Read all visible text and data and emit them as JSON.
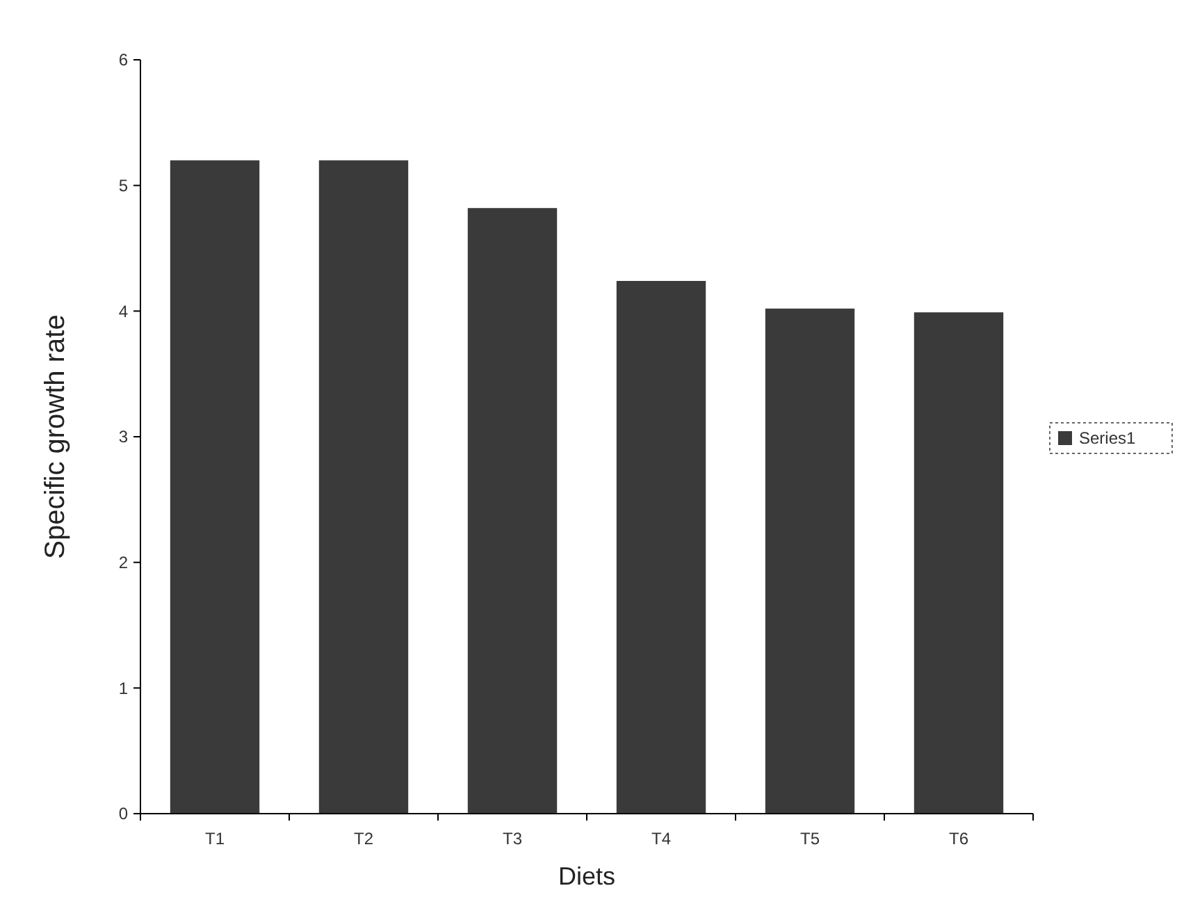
{
  "chart_data": {
    "type": "bar",
    "xlabel": "Diets",
    "ylabel": "Specific growth rate",
    "categories": [
      "T1",
      "T2",
      "T3",
      "T4",
      "T5",
      "T6"
    ],
    "series": [
      {
        "name": "Series1",
        "color": "#3a3a3a",
        "values": [
          5.2,
          5.2,
          4.82,
          4.24,
          4.02,
          3.99
        ]
      }
    ],
    "ylim": [
      0,
      6
    ],
    "yticks": [
      0,
      1,
      2,
      3,
      4,
      5,
      6
    ],
    "legend": "right"
  }
}
